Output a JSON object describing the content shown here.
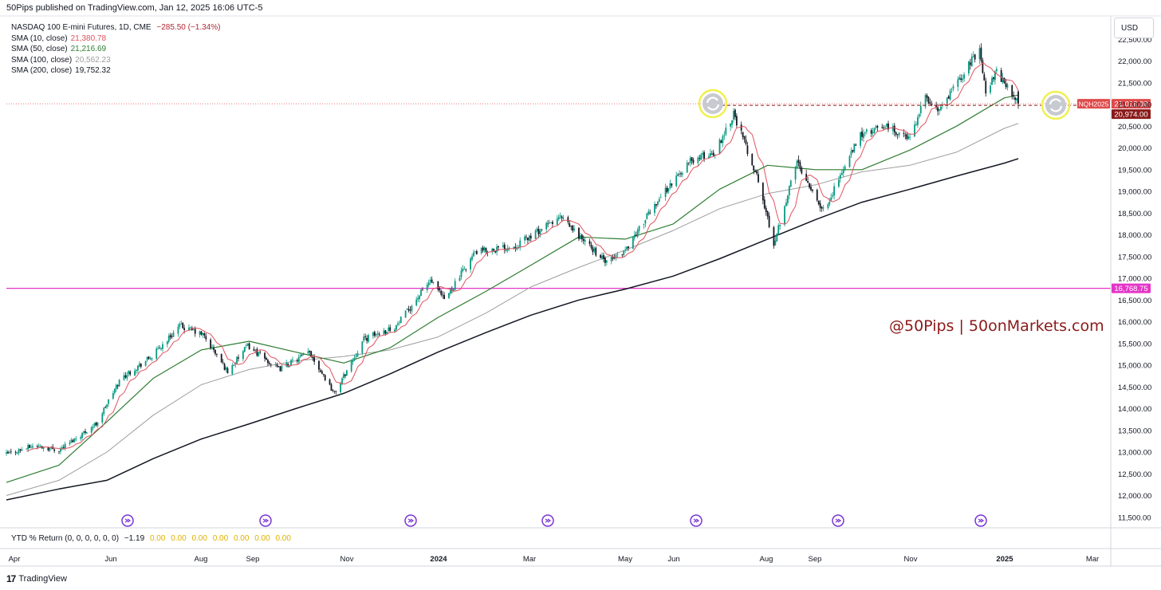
{
  "header": {
    "published_by": "50Pips published on TradingView.com, Jan 12, 2025 16:06 UTC-5"
  },
  "legend": {
    "symbol_line": "NASDAQ 100 E-mini Futures, 1D, CME",
    "change": "−285.50 (−1.34%)",
    "change_color": "#b22833",
    "sma": [
      {
        "label": "SMA (10, close)",
        "value": "21,380.78",
        "color": "#e0525c"
      },
      {
        "label": "SMA (50, close)",
        "value": "21,216.69",
        "color": "#2e7d32"
      },
      {
        "label": "SMA (100, close)",
        "value": "20,562.23",
        "color": "#9e9e9e"
      },
      {
        "label": "SMA (200, close)",
        "value": "19,752.32",
        "color": "#131722"
      }
    ]
  },
  "currency_button": "USD",
  "price_tags": {
    "symbol_tag": "NQH2025",
    "last_price": "21,016.00",
    "second_price": "20,974.00",
    "horizontal_line": "16,768.75",
    "horizontal_line_color": "#e535c8",
    "tag_color": "#e04a4a",
    "dark_tag_color": "#8b1a1a"
  },
  "watermark": "@50Pips  |  50onMarkets.com",
  "indicator_pane": {
    "label": "YTD % Return (0, 0, 0, 0, 0, 0)",
    "value": "−1.19",
    "zeros": [
      "0.00",
      "0.00",
      "0.00",
      "0.00",
      "0.00",
      "0.00",
      "0.00"
    ]
  },
  "brand": {
    "logo": "17",
    "name": "TradingView"
  },
  "icons": {
    "refresh_icon_color": "#f0f050",
    "event_icon_color": "#7b35d6"
  },
  "chart_data": {
    "type": "candlestick",
    "ylim": [
      11250,
      22750
    ],
    "y_ticks": [
      "22,500.00",
      "22,000.00",
      "21,500.00",
      "21,000.00",
      "20,500.00",
      "20,000.00",
      "19,500.00",
      "19,000.00",
      "18,500.00",
      "18,000.00",
      "17,500.00",
      "17,000.00",
      "16,500.00",
      "16,000.00",
      "15,500.00",
      "15,000.00",
      "14,500.00",
      "14,000.00",
      "13,500.00",
      "13,000.00",
      "12,500.00",
      "12,000.00",
      "11,500.00"
    ],
    "x_ticks": [
      "Apr",
      "Jun",
      "Aug",
      "Sep",
      "Nov",
      "2024",
      "Mar",
      "May",
      "Jun",
      "Aug",
      "Sep",
      "Nov",
      "2025",
      "Mar"
    ],
    "series": [
      {
        "name": "SMA (10, close)",
        "color": "#e0525c"
      },
      {
        "name": "SMA (50, close)",
        "color": "#2e7d32"
      },
      {
        "name": "SMA (100, close)",
        "color": "#9e9e9e"
      },
      {
        "name": "SMA (200, close)",
        "color": "#131722"
      }
    ],
    "anchors": [
      {
        "date": "2023-03-28",
        "close": 12950
      },
      {
        "date": "2023-04-15",
        "close": 13150
      },
      {
        "date": "2023-05-01",
        "close": 13050
      },
      {
        "date": "2023-05-25",
        "close": 13650
      },
      {
        "date": "2023-06-10",
        "close": 14700
      },
      {
        "date": "2023-06-30",
        "close": 15200
      },
      {
        "date": "2023-07-18",
        "close": 15900
      },
      {
        "date": "2023-08-02",
        "close": 15700
      },
      {
        "date": "2023-08-18",
        "close": 14850
      },
      {
        "date": "2023-08-31",
        "close": 15450
      },
      {
        "date": "2023-09-20",
        "close": 14900
      },
      {
        "date": "2023-10-10",
        "close": 15300
      },
      {
        "date": "2023-10-26",
        "close": 14350
      },
      {
        "date": "2023-11-14",
        "close": 15600
      },
      {
        "date": "2023-12-05",
        "close": 15900
      },
      {
        "date": "2023-12-27",
        "close": 16950
      },
      {
        "date": "2024-01-05",
        "close": 16500
      },
      {
        "date": "2024-01-25",
        "close": 17600
      },
      {
        "date": "2024-02-20",
        "close": 17750
      },
      {
        "date": "2024-03-20",
        "close": 18400
      },
      {
        "date": "2024-04-19",
        "close": 17350
      },
      {
        "date": "2024-05-01",
        "close": 17650
      },
      {
        "date": "2024-05-22",
        "close": 18800
      },
      {
        "date": "2024-06-12",
        "close": 19700
      },
      {
        "date": "2024-06-28",
        "close": 19900
      },
      {
        "date": "2024-07-10",
        "close": 20800
      },
      {
        "date": "2024-07-25",
        "close": 19350
      },
      {
        "date": "2024-08-05",
        "close": 17800
      },
      {
        "date": "2024-08-20",
        "close": 19700
      },
      {
        "date": "2024-09-06",
        "close": 18550
      },
      {
        "date": "2024-09-30",
        "close": 20300
      },
      {
        "date": "2024-10-17",
        "close": 20500
      },
      {
        "date": "2024-10-31",
        "close": 20200
      },
      {
        "date": "2024-11-11",
        "close": 21150
      },
      {
        "date": "2024-11-20",
        "close": 20850
      },
      {
        "date": "2024-12-16",
        "close": 22300
      },
      {
        "date": "2024-12-20",
        "close": 21300
      },
      {
        "date": "2024-12-27",
        "close": 21750
      },
      {
        "date": "2025-01-03",
        "close": 21400
      },
      {
        "date": "2025-01-10",
        "close": 21016
      }
    ],
    "sma_paths": {
      "sma50": [
        [
          "2023-03-28",
          12300
        ],
        [
          "2023-05-01",
          12700
        ],
        [
          "2023-06-01",
          13700
        ],
        [
          "2023-07-01",
          14700
        ],
        [
          "2023-08-01",
          15350
        ],
        [
          "2023-09-01",
          15550
        ],
        [
          "2023-10-01",
          15300
        ],
        [
          "2023-11-01",
          15050
        ],
        [
          "2023-12-01",
          15400
        ],
        [
          "2024-01-01",
          16100
        ],
        [
          "2024-02-01",
          16700
        ],
        [
          "2024-03-01",
          17300
        ],
        [
          "2024-04-01",
          17950
        ],
        [
          "2024-05-01",
          17900
        ],
        [
          "2024-06-01",
          18250
        ],
        [
          "2024-07-01",
          19050
        ],
        [
          "2024-08-01",
          19600
        ],
        [
          "2024-09-01",
          19500
        ],
        [
          "2024-10-01",
          19500
        ],
        [
          "2024-11-01",
          19950
        ],
        [
          "2024-12-01",
          20500
        ],
        [
          "2025-01-01",
          21150
        ],
        [
          "2025-01-10",
          21216.69
        ]
      ],
      "sma100": [
        [
          "2023-03-28",
          12000
        ],
        [
          "2023-05-01",
          12350
        ],
        [
          "2023-06-01",
          13000
        ],
        [
          "2023-07-01",
          13850
        ],
        [
          "2023-08-01",
          14550
        ],
        [
          "2023-09-01",
          14900
        ],
        [
          "2023-10-01",
          15100
        ],
        [
          "2023-11-01",
          15200
        ],
        [
          "2023-12-01",
          15350
        ],
        [
          "2024-01-01",
          15650
        ],
        [
          "2024-02-01",
          16200
        ],
        [
          "2024-03-01",
          16800
        ],
        [
          "2024-04-01",
          17250
        ],
        [
          "2024-05-01",
          17650
        ],
        [
          "2024-06-01",
          18100
        ],
        [
          "2024-07-01",
          18600
        ],
        [
          "2024-08-01",
          18950
        ],
        [
          "2024-09-01",
          19150
        ],
        [
          "2024-10-01",
          19450
        ],
        [
          "2024-11-01",
          19600
        ],
        [
          "2024-12-01",
          19900
        ],
        [
          "2025-01-01",
          20450
        ],
        [
          "2025-01-10",
          20562.23
        ]
      ],
      "sma200": [
        [
          "2023-03-28",
          11900
        ],
        [
          "2023-05-01",
          12150
        ],
        [
          "2023-06-01",
          12350
        ],
        [
          "2023-07-01",
          12850
        ],
        [
          "2023-08-01",
          13300
        ],
        [
          "2023-09-01",
          13650
        ],
        [
          "2023-10-01",
          14000
        ],
        [
          "2023-11-01",
          14350
        ],
        [
          "2023-12-01",
          14800
        ],
        [
          "2024-01-01",
          15300
        ],
        [
          "2024-02-01",
          15750
        ],
        [
          "2024-03-01",
          16150
        ],
        [
          "2024-04-01",
          16500
        ],
        [
          "2024-05-01",
          16750
        ],
        [
          "2024-06-01",
          17050
        ],
        [
          "2024-07-01",
          17450
        ],
        [
          "2024-08-01",
          17900
        ],
        [
          "2024-09-01",
          18350
        ],
        [
          "2024-10-01",
          18750
        ],
        [
          "2024-11-01",
          19050
        ],
        [
          "2024-12-01",
          19350
        ],
        [
          "2025-01-01",
          19650
        ],
        [
          "2025-01-10",
          19752.32
        ]
      ]
    }
  }
}
